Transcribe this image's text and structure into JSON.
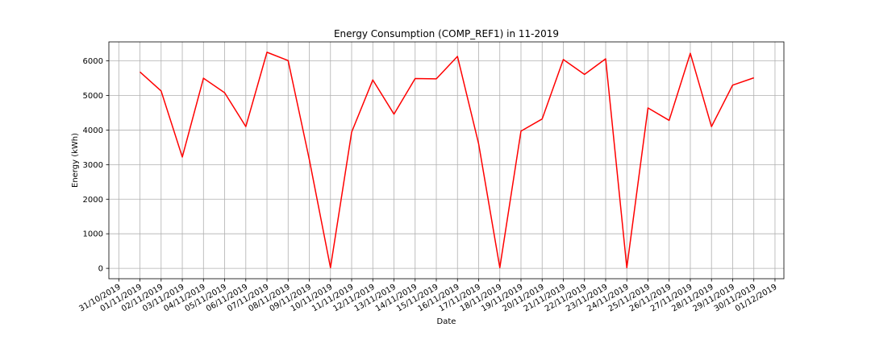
{
  "chart_data": {
    "type": "line",
    "title": "Energy Consumption (COMP_REF1) in 11-2019",
    "xlabel": "Date",
    "ylabel": "Energy (kWh)",
    "grid": true,
    "x_ticks": [
      "31/10/2019",
      "01/11/2019",
      "02/11/2019",
      "03/11/2019",
      "04/11/2019",
      "05/11/2019",
      "06/11/2019",
      "07/11/2019",
      "08/11/2019",
      "09/11/2019",
      "10/11/2019",
      "11/11/2019",
      "12/11/2019",
      "13/11/2019",
      "14/11/2019",
      "15/11/2019",
      "16/11/2019",
      "17/11/2019",
      "18/11/2019",
      "19/11/2019",
      "20/11/2019",
      "21/11/2019",
      "22/11/2019",
      "23/11/2019",
      "24/11/2019",
      "25/11/2019",
      "26/11/2019",
      "27/11/2019",
      "28/11/2019",
      "29/11/2019",
      "30/11/2019",
      "01/12/2019"
    ],
    "y_ticks": [
      "0",
      "1000",
      "2000",
      "3000",
      "4000",
      "5000",
      "6000"
    ],
    "ylim": [
      -300,
      6550
    ],
    "series": [
      {
        "color": "#ff0000",
        "x": [
          "01/11/2019",
          "02/11/2019",
          "03/11/2019",
          "04/11/2019",
          "05/11/2019",
          "06/11/2019",
          "07/11/2019",
          "08/11/2019",
          "09/11/2019",
          "10/11/2019",
          "11/11/2019",
          "12/11/2019",
          "13/11/2019",
          "14/11/2019",
          "15/11/2019",
          "16/11/2019",
          "17/11/2019",
          "18/11/2019",
          "19/11/2019",
          "20/11/2019",
          "21/11/2019",
          "22/11/2019",
          "23/11/2019",
          "24/11/2019",
          "25/11/2019",
          "26/11/2019",
          "27/11/2019",
          "28/11/2019",
          "29/11/2019",
          "30/11/2019"
        ],
        "values": [
          5680,
          5130,
          3220,
          5500,
          5080,
          4100,
          6250,
          6010,
          3150,
          20,
          3940,
          5450,
          4460,
          5490,
          5480,
          6130,
          3600,
          20,
          3970,
          4320,
          6040,
          5610,
          6060,
          20,
          4640,
          4280,
          6220,
          4100,
          5300,
          5510
        ]
      }
    ]
  }
}
